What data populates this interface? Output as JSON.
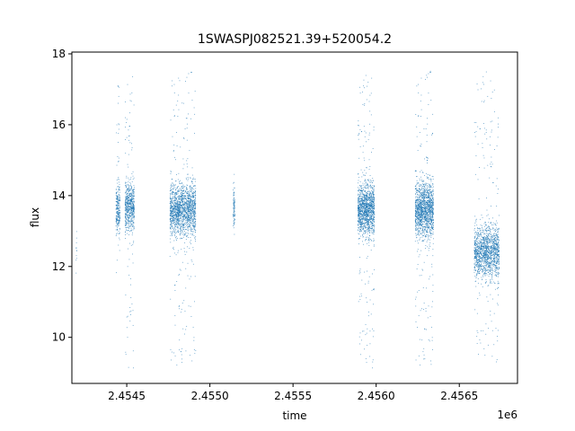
{
  "chart_data": {
    "type": "scatter",
    "title": "1SWASPJ082521.39+520054.2",
    "xlabel": "time",
    "ylabel": "flux",
    "x_offset_label": "1e6",
    "xlim": [
      2454170,
      2456850
    ],
    "ylim": [
      8.7,
      18.05
    ],
    "xticks": [
      2454500,
      2455000,
      2455500,
      2456000,
      2456500
    ],
    "xtick_labels": [
      "2.4545",
      "2.4550",
      "2.4555",
      "2.4560",
      "2.4565"
    ],
    "yticks": [
      10,
      12,
      14,
      16,
      18
    ],
    "ytick_labels": [
      "10",
      "12",
      "14",
      "16",
      "18"
    ],
    "grid": false,
    "marker_color": "#1f77b4",
    "series": [
      {
        "clusters": [
          {
            "x_range": [
              2454195,
              2454200
            ],
            "y_center": 12.4,
            "y_core_half": 0.7,
            "y_range": [
              11.6,
              13.3
            ],
            "count": 12
          },
          {
            "x_range": [
              2454435,
              2454460
            ],
            "y_center": 13.6,
            "y_core_half": 0.55,
            "y_range": [
              11.3,
              17.3
            ],
            "count": 260
          },
          {
            "x_range": [
              2454490,
              2454545
            ],
            "y_center": 13.7,
            "y_core_half": 0.6,
            "y_range": [
              9.1,
              17.4
            ],
            "count": 650
          },
          {
            "x_range": [
              2454760,
              2454915
            ],
            "y_center": 13.6,
            "y_core_half": 0.6,
            "y_range": [
              9.2,
              17.6
            ],
            "count": 1700
          },
          {
            "x_range": [
              2455140,
              2455150
            ],
            "y_center": 13.7,
            "y_core_half": 0.45,
            "y_range": [
              12.9,
              14.6
            ],
            "count": 90
          },
          {
            "x_range": [
              2455890,
              2455990
            ],
            "y_center": 13.6,
            "y_core_half": 0.6,
            "y_range": [
              9.1,
              17.4
            ],
            "count": 1400
          },
          {
            "x_range": [
              2456235,
              2456345
            ],
            "y_center": 13.6,
            "y_core_half": 0.65,
            "y_range": [
              9.2,
              17.6
            ],
            "count": 1500
          },
          {
            "x_range": [
              2456590,
              2456740
            ],
            "y_center": 12.4,
            "y_core_half": 0.6,
            "y_range": [
              9.1,
              17.5
            ],
            "count": 1500
          }
        ]
      }
    ]
  }
}
